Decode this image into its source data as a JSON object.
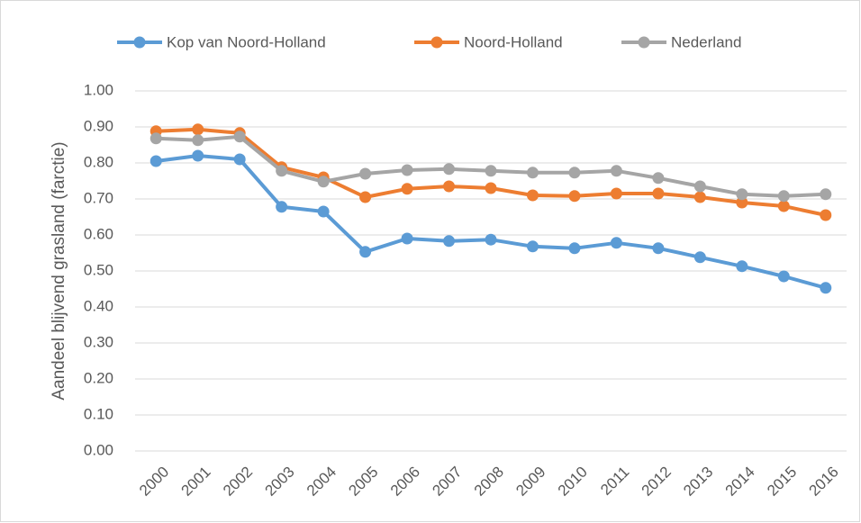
{
  "chart_data": {
    "type": "line",
    "y_axis_label": "Aandeel blijvend grasland (farctie)",
    "categories": [
      "2000",
      "2001",
      "2002",
      "2003",
      "2004",
      "2005",
      "2006",
      "2007",
      "2008",
      "2009",
      "2010",
      "2011",
      "2012",
      "2013",
      "2014",
      "2015",
      "2016"
    ],
    "series": [
      {
        "name": "Kop van Noord-Holland",
        "color": "#5b9bd5",
        "values": [
          0.805,
          0.82,
          0.81,
          0.678,
          0.665,
          0.553,
          0.59,
          0.583,
          0.587,
          0.568,
          0.563,
          0.578,
          0.563,
          0.538,
          0.513,
          0.485,
          0.453
        ]
      },
      {
        "name": "Noord-Holland",
        "color": "#ed7d31",
        "values": [
          0.888,
          0.893,
          0.883,
          0.788,
          0.76,
          0.705,
          0.728,
          0.735,
          0.73,
          0.71,
          0.708,
          0.715,
          0.715,
          0.705,
          0.69,
          0.68,
          0.655
        ]
      },
      {
        "name": "Nederland",
        "color": "#a5a5a5",
        "values": [
          0.868,
          0.863,
          0.873,
          0.778,
          0.748,
          0.77,
          0.78,
          0.783,
          0.778,
          0.773,
          0.773,
          0.778,
          0.758,
          0.735,
          0.713,
          0.708,
          0.713
        ]
      }
    ],
    "ylim": [
      0,
      1
    ],
    "yticks": [
      {
        "value": 0,
        "label": "0.00"
      },
      {
        "value": 0.1,
        "label": "0.10"
      },
      {
        "value": 0.2,
        "label": "0.20"
      },
      {
        "value": 0.3,
        "label": "0.30"
      },
      {
        "value": 0.4,
        "label": "0.40"
      },
      {
        "value": 0.5,
        "label": "0.50"
      },
      {
        "value": 0.6,
        "label": "0.60"
      },
      {
        "value": 0.7,
        "label": "0.70"
      },
      {
        "value": 0.8,
        "label": "0.80"
      },
      {
        "value": 0.9,
        "label": "0.90"
      },
      {
        "value": 1,
        "label": "1.00"
      }
    ],
    "grid": true,
    "legend": "top"
  }
}
